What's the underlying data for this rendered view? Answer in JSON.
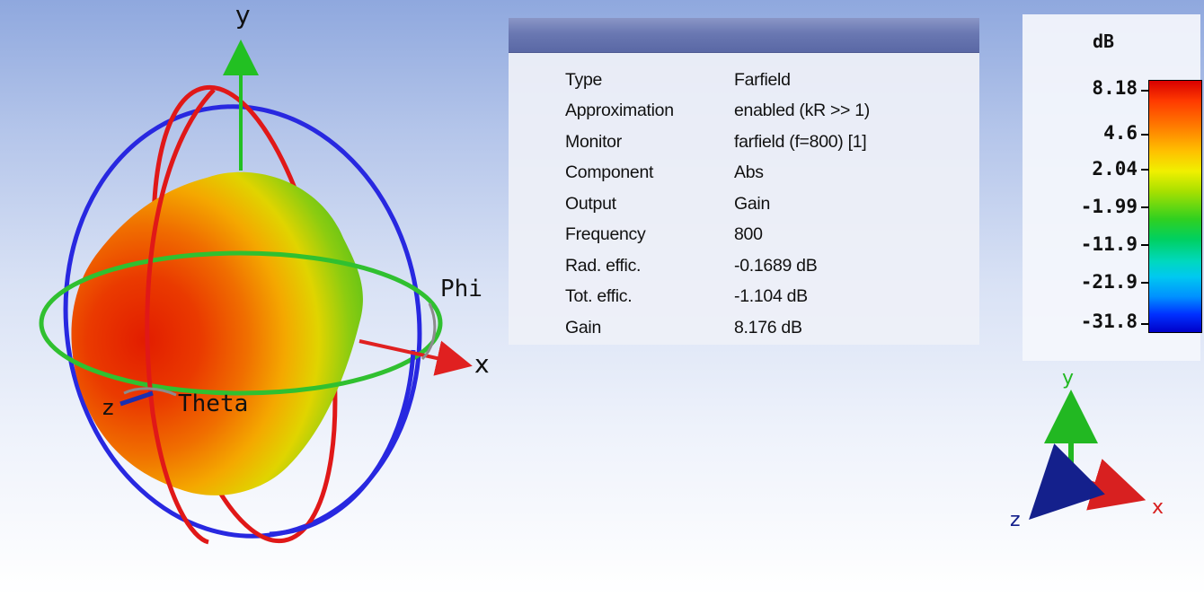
{
  "scene_labels": {
    "y_axis": "y",
    "x_axis": "x",
    "z_axis": "z",
    "phi": "Phi",
    "theta": "Theta"
  },
  "info_panel": {
    "rows": [
      {
        "key": "Type",
        "value": "Farfield"
      },
      {
        "key": "Approximation",
        "value": "enabled (kR >> 1)"
      },
      {
        "key": "Monitor",
        "value": "farfield (f=800) [1]"
      },
      {
        "key": "Component",
        "value": "Abs"
      },
      {
        "key": "Output",
        "value": "Gain"
      },
      {
        "key": "Frequency",
        "value": "800"
      },
      {
        "key": "Rad. effic.",
        "value": "-0.1689 dB"
      },
      {
        "key": "Tot. effic.",
        "value": "-1.104 dB"
      },
      {
        "key": "Gain",
        "value": "8.176 dB"
      }
    ]
  },
  "legend": {
    "unit": "dB",
    "labels": [
      "8.18",
      "4.6",
      "2.04",
      "-1.99",
      "-11.9",
      "-21.9",
      "-31.8"
    ]
  },
  "mini_axes": {
    "y": "y",
    "x": "x",
    "z": "z"
  },
  "colors": {
    "x_axis": "#e02020",
    "y_axis": "#22c022",
    "z_axis": "#1a2fb0",
    "phi_ring": "#30c030",
    "meridian_red": "#e01818",
    "meridian_blue": "#2828e0"
  }
}
